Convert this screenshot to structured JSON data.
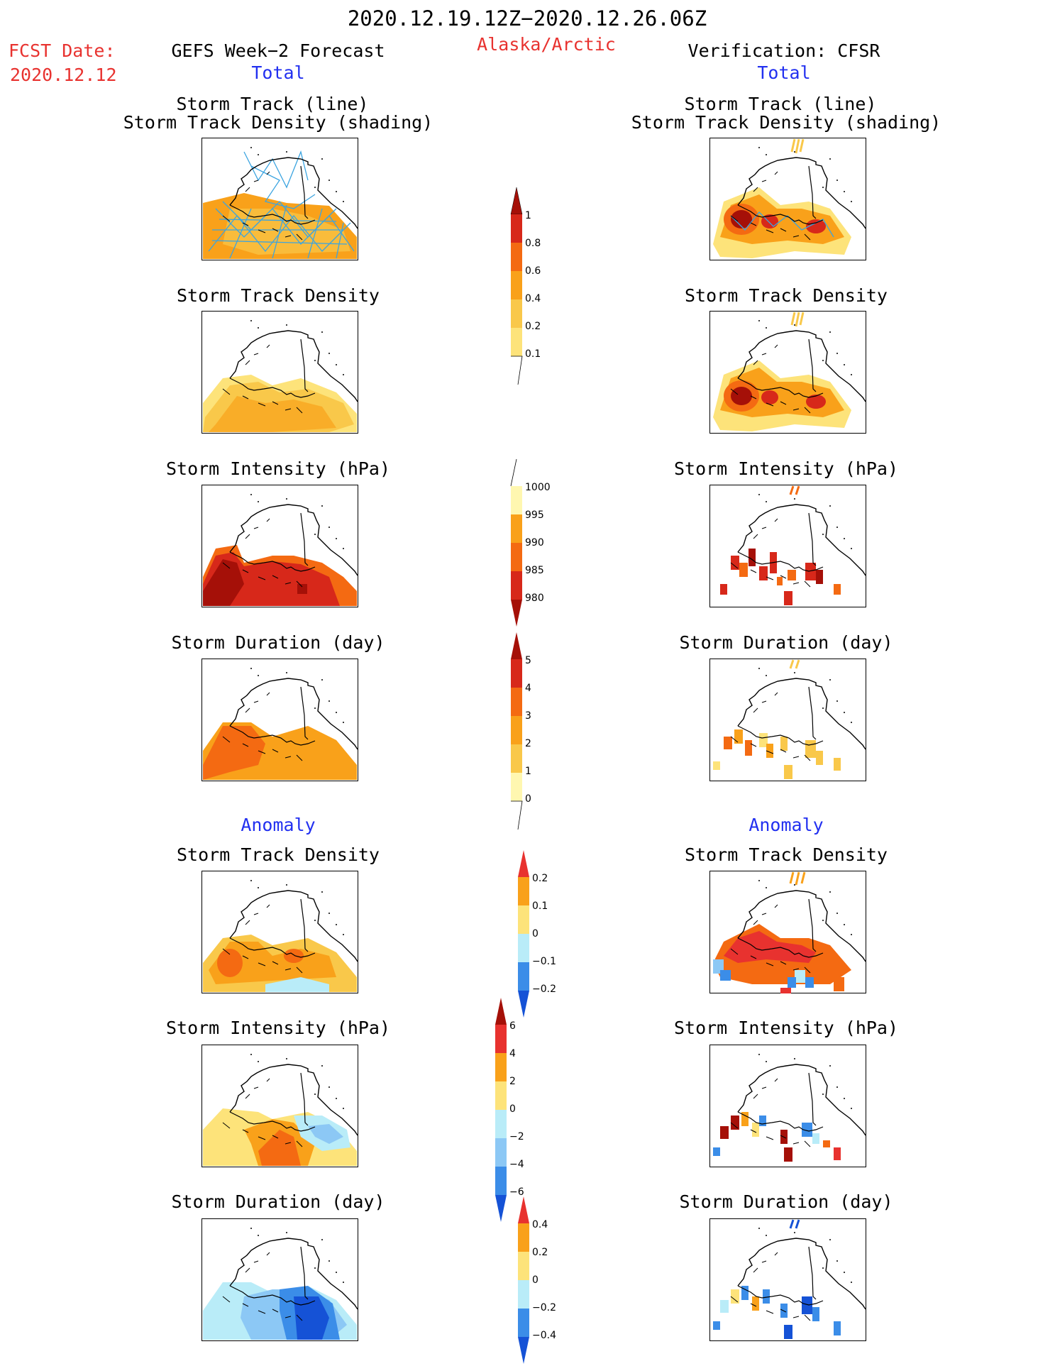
{
  "header": {
    "period": "2020.12.19.12Z−2020.12.26.06Z",
    "region": "Alaska/Arctic",
    "fcst_label": "FCST Date:",
    "fcst_date": "2020.12.12",
    "left_title": "GEFS Week−2 Forecast",
    "right_title": "Verification: CFSR",
    "left_sub": "Total",
    "right_sub": "Total",
    "anomaly_left": "Anomaly",
    "anomaly_right": "Anomaly"
  },
  "panels": {
    "track_line": "Storm Track (line)",
    "track_shading": "Storm Track Density (shading)",
    "density": "Storm Track Density",
    "intensity": "Storm Intensity (hPa)",
    "duration": "Storm Duration (day)"
  },
  "colorbars": {
    "density": [
      "1",
      "0.8",
      "0.6",
      "0.4",
      "0.2",
      "0.1"
    ],
    "intensity": [
      "1000",
      "995",
      "990",
      "985",
      "980"
    ],
    "duration": [
      "5",
      "4",
      "3",
      "2",
      "1",
      "0"
    ],
    "density_anom": [
      "0.2",
      "0.1",
      "0",
      "−0.1",
      "−0.2"
    ],
    "intensity_anom": [
      "6",
      "4",
      "2",
      "0",
      "−2",
      "−4",
      "−6"
    ],
    "duration_anom": [
      "0.4",
      "0.2",
      "0",
      "−0.2",
      "−0.4"
    ]
  },
  "colors": {
    "title_red": "#e8322f",
    "title_blue": "#2230f0",
    "yellow_pale": "#fff7b0",
    "yellow": "#fde37a",
    "gold": "#f9c84a",
    "orange": "#f9a11a",
    "dark_orange": "#f46a12",
    "red": "#d7281a",
    "dark_red": "#a51008",
    "light_blue": "#b9ecf8",
    "mid_blue": "#8cc8f5",
    "blue": "#3b8de8",
    "deep_blue": "#1552d6"
  }
}
